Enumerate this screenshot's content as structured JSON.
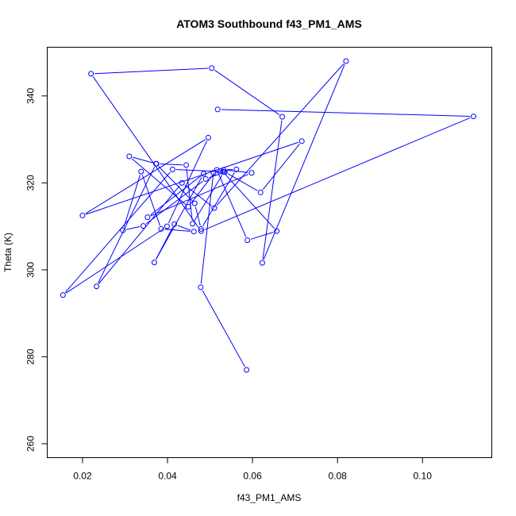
{
  "chart_data": {
    "type": "line",
    "title": "ATOM3 Southbound f43_PM1_AMS",
    "xlabel": "f43_PM1_AMS",
    "ylabel": "Theta (K)",
    "xlim": [
      0.0117,
      0.1163
    ],
    "ylim": [
      256.8,
      351.2
    ],
    "x_ticks": [
      0.02,
      0.04,
      0.06,
      0.08,
      0.1
    ],
    "x_tick_labels": [
      "0.02",
      "0.04",
      "0.06",
      "0.08",
      "0.10"
    ],
    "y_ticks": [
      260,
      280,
      300,
      320,
      340
    ],
    "y_tick_labels": [
      "260",
      "280",
      "300",
      "320",
      "340"
    ],
    "grid": false,
    "legend": "none",
    "line_color": "#0000ff",
    "marker": "open-circle",
    "series": [
      {
        "x": [
          0.0586,
          0.0478,
          0.0508,
          0.0533,
          0.0459,
          0.0444,
          0.0374,
          0.031,
          0.0449,
          0.0516,
          0.0588,
          0.0657,
          0.053,
          0.0412,
          0.0154,
          0.0399,
          0.0496,
          0.02,
          0.0716,
          0.0619,
          0.0535,
          0.049,
          0.0343,
          0.0295,
          0.0338,
          0.0385,
          0.0462,
          0.0416,
          0.0369,
          0.0485,
          0.0353,
          0.0598,
          0.0532,
          0.0562,
          0.0479,
          0.0464,
          0.0373,
          0.0233,
          0.0434,
          0.051,
          0.082,
          0.0623,
          0.067,
          0.0504,
          0.022,
          0.0479,
          0.112,
          0.0518
        ],
        "y": [
          277.0,
          296.0,
          322.3,
          322.5,
          310.6,
          324.1,
          324.4,
          326.1,
          314.5,
          323.0,
          306.8,
          308.9,
          322.6,
          323.1,
          294.2,
          310.0,
          330.4,
          312.5,
          329.6,
          317.8,
          322.5,
          320.9,
          310.1,
          309.1,
          322.6,
          309.4,
          308.8,
          310.5,
          301.7,
          322.1,
          312.1,
          322.3,
          323.0,
          323.1,
          309.4,
          315.3,
          324.4,
          296.2,
          320.0,
          314.2,
          348.0,
          301.6,
          335.2,
          346.4,
          345.1,
          308.9,
          335.3,
          336.9
        ]
      }
    ]
  }
}
